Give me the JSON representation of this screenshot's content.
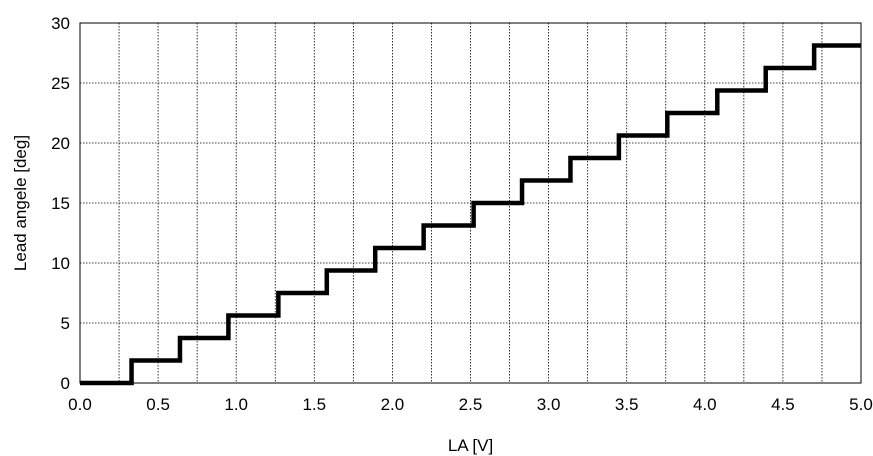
{
  "chart_data": {
    "type": "line",
    "title": "",
    "xlabel": "LA [V]",
    "ylabel": "Lead angele [deg]",
    "xlim": [
      0,
      5
    ],
    "ylim": [
      0,
      30
    ],
    "xticks": [
      0.0,
      0.5,
      1.0,
      1.5,
      2.0,
      2.5,
      3.0,
      3.5,
      4.0,
      4.5,
      5.0
    ],
    "xtick_labels": [
      "0.0",
      "0.5",
      "1.0",
      "1.5",
      "2.0",
      "2.5",
      "3.0",
      "3.5",
      "4.0",
      "4.5",
      "5.0"
    ],
    "yticks": [
      0,
      5,
      10,
      15,
      20,
      25,
      30
    ],
    "ytick_labels": [
      "0",
      "5",
      "10",
      "15",
      "20",
      "25",
      "30"
    ],
    "x_minor_step": 0.25,
    "grid": true,
    "grid_style": "dotted",
    "legend": "none",
    "line_color": "#000000",
    "step_mode": "step-up at each x",
    "series": [
      {
        "x": [
          0.0,
          0.33,
          0.64,
          0.95,
          1.27,
          1.58,
          1.89,
          2.2,
          2.52,
          2.83,
          3.14,
          3.45,
          3.76,
          4.08,
          4.39,
          4.7,
          5.0
        ],
        "values": [
          0.0,
          1.875,
          3.75,
          5.625,
          7.5,
          9.375,
          11.25,
          13.125,
          15.0,
          16.875,
          18.75,
          20.625,
          22.5,
          24.375,
          26.25,
          28.125,
          28.125
        ]
      }
    ]
  }
}
